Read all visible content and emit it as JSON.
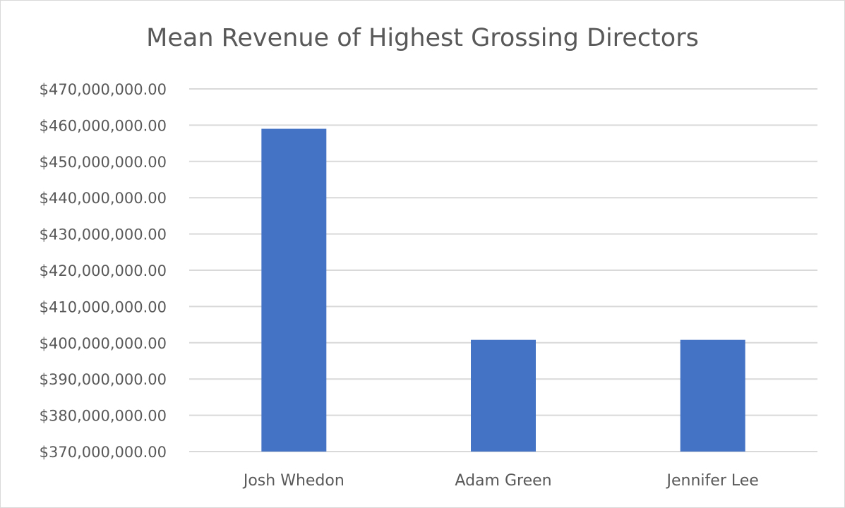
{
  "chart_data": {
    "type": "bar",
    "title": "Mean Revenue of Highest Grossing Directors",
    "xlabel": "",
    "ylabel": "",
    "categories": [
      "Josh Whedon",
      "Adam Green",
      "Jennifer Lee"
    ],
    "values": [
      459000000,
      400800000,
      400800000
    ],
    "ylim": [
      370000000,
      470000000
    ],
    "y_ticks": [
      "$370,000,000.00",
      "$380,000,000.00",
      "$390,000,000.00",
      "$400,000,000.00",
      "$410,000,000.00",
      "$420,000,000.00",
      "$430,000,000.00",
      "$440,000,000.00",
      "$450,000,000.00",
      "$460,000,000.00",
      "$470,000,000.00"
    ],
    "grid": true,
    "legend": "none",
    "colors": {
      "bar": "#4472c4",
      "grid": "#d9d9d9",
      "text": "#595959"
    }
  }
}
